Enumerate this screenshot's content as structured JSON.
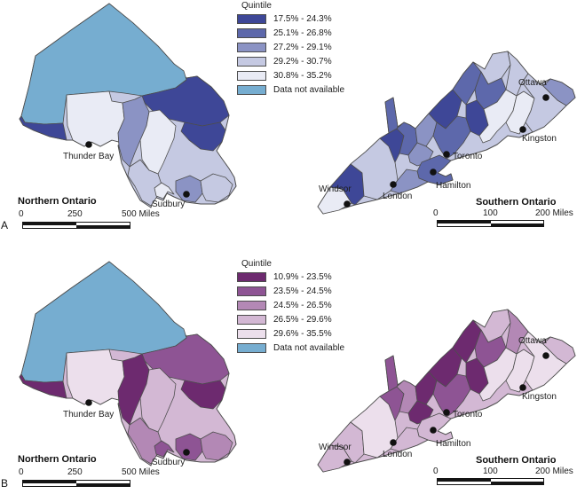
{
  "figure": {
    "panels": [
      {
        "letter": "A",
        "legend": {
          "title": "Quintile",
          "items": [
            {
              "label": "17.5% - 24.3%",
              "color": "#3e4797"
            },
            {
              "label": "25.1% - 26.8%",
              "color": "#5d68ab"
            },
            {
              "label": "27.2% - 29.1%",
              "color": "#8b93c4"
            },
            {
              "label": "29.2% - 30.7%",
              "color": "#c5c9e2"
            },
            {
              "label": "30.8% - 35.2%",
              "color": "#e9ebf5"
            },
            {
              "label": "Data not available",
              "color": "#76add0"
            }
          ]
        },
        "north": {
          "title": "Northern Ontario",
          "cities": {
            "thunder_bay": "Thunder Bay",
            "sudbury": "Sudbury"
          },
          "scale": {
            "zero": "0",
            "mid": "250",
            "end": "500 Miles"
          },
          "region_quintiles": [
            6,
            1,
            5,
            1,
            1,
            3,
            5,
            4,
            5,
            3,
            4
          ]
        },
        "south": {
          "title": "Southern Ontario",
          "cities": {
            "ottawa": "Ottawa",
            "kingston": "Kingston",
            "toronto": "Toronto",
            "hamilton": "Hamilton",
            "london": "London",
            "windsor": "Windsor"
          },
          "scale": {
            "zero": "0",
            "mid": "100",
            "end": "200 Miles"
          },
          "region_quintiles": [
            5,
            1,
            4,
            1,
            2,
            2,
            3,
            1,
            2,
            4,
            2,
            2,
            1,
            3,
            2,
            3,
            5,
            5,
            4,
            4,
            3
          ]
        }
      },
      {
        "letter": "B",
        "legend": {
          "title": "Quintile",
          "items": [
            {
              "label": "10.9% - 23.5%",
              "color": "#6d2a6f"
            },
            {
              "label": "23.5% - 24.5%",
              "color": "#8e5494"
            },
            {
              "label": "24.5% - 26.5%",
              "color": "#b388b5"
            },
            {
              "label": "26.5% - 29.6%",
              "color": "#d3b8d4"
            },
            {
              "label": "29.6% - 35.5%",
              "color": "#ecdfec"
            },
            {
              "label": "Data not available",
              "color": "#76add0"
            }
          ]
        },
        "north": {
          "title": "Northern Ontario",
          "cities": {
            "thunder_bay": "Thunder Bay",
            "sudbury": "Sudbury"
          },
          "scale": {
            "zero": "0",
            "mid": "250",
            "end": "500 Miles"
          },
          "region_quintiles": [
            6,
            1,
            5,
            2,
            1,
            1,
            4,
            3,
            2,
            2,
            3
          ]
        },
        "south": {
          "title": "Southern Ontario",
          "cities": {
            "ottawa": "Ottawa",
            "kingston": "Kingston",
            "toronto": "Toronto",
            "hamilton": "Hamilton",
            "london": "London",
            "windsor": "Windsor"
          },
          "scale": {
            "zero": "0",
            "mid": "100",
            "end": "200 Miles"
          },
          "region_quintiles": [
            4,
            4,
            5,
            2,
            2,
            3,
            1,
            1,
            1,
            4,
            2,
            2,
            1,
            1,
            4,
            4,
            5,
            5,
            3,
            5,
            4
          ]
        }
      }
    ]
  }
}
